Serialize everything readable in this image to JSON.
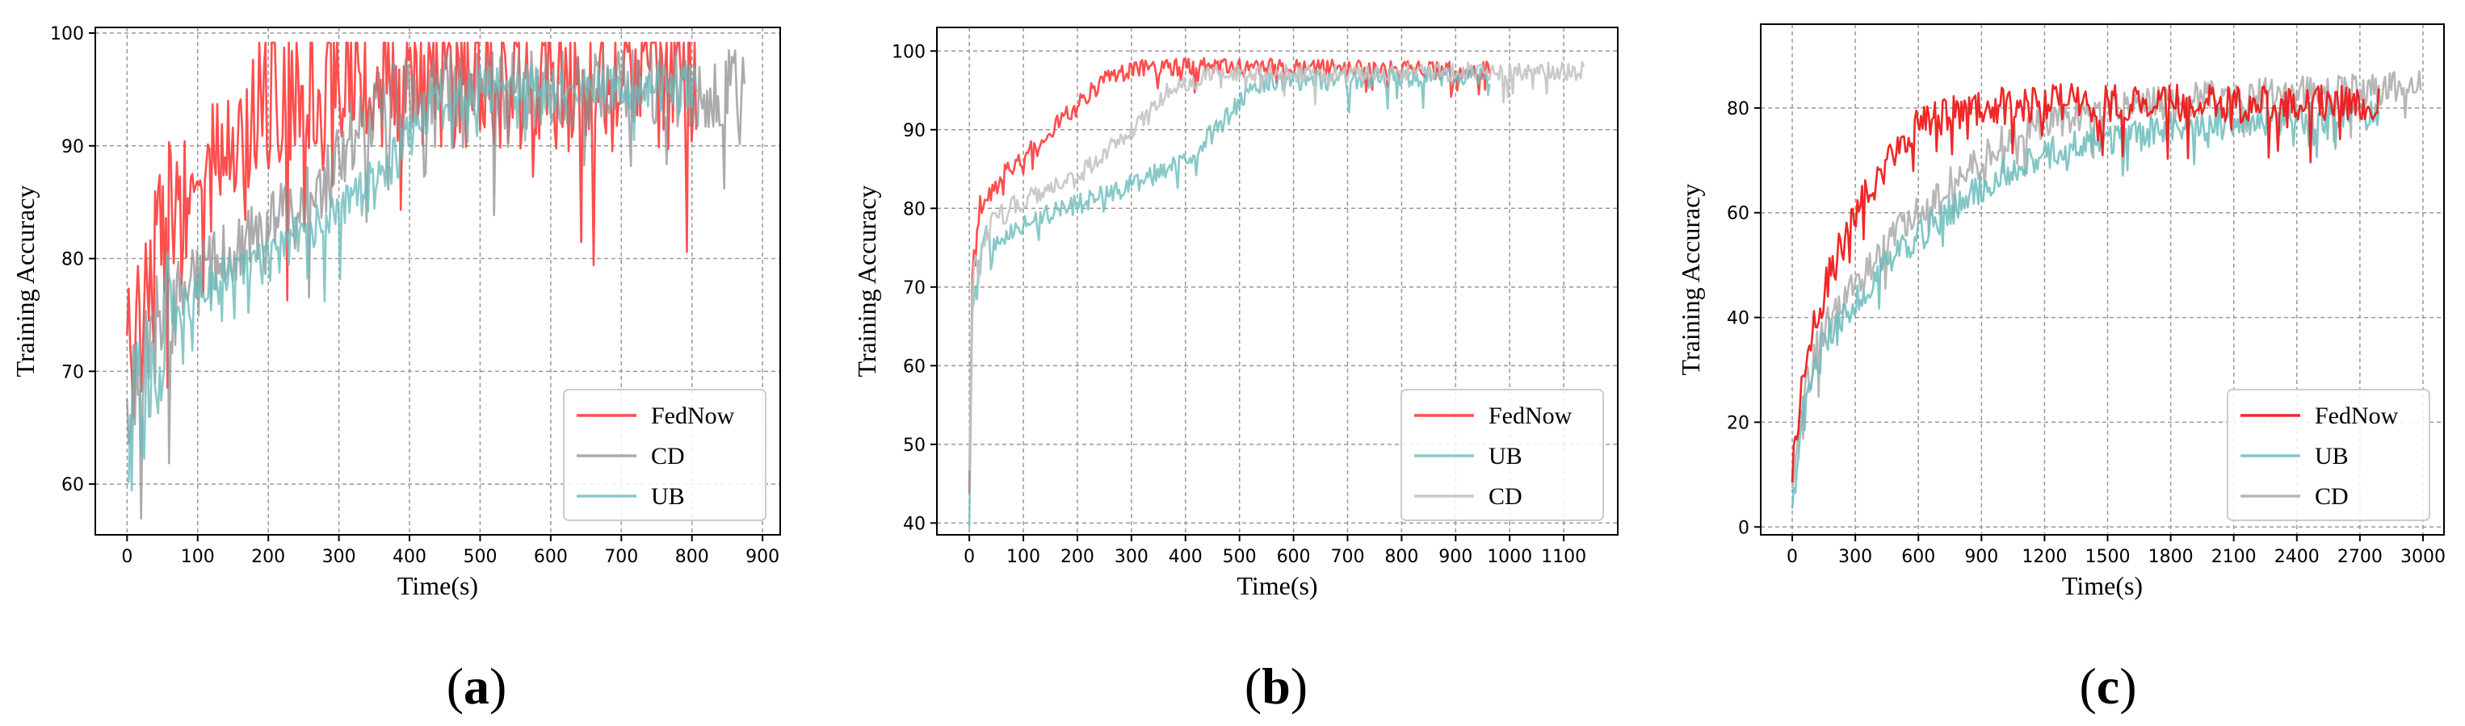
{
  "chart_data": [
    {
      "id": "a",
      "type": "line",
      "panel_label": "a",
      "xlabel": "Time(s)",
      "ylabel": "Training Accuracy",
      "xlim": [
        -45,
        925
      ],
      "ylim": [
        55.5,
        100.5
      ],
      "xticks": [
        0,
        100,
        200,
        300,
        400,
        500,
        600,
        700,
        800,
        900
      ],
      "yticks": [
        60,
        70,
        80,
        90,
        100
      ],
      "grid": true,
      "legend_position": "lower-right",
      "legend_order": [
        "FedNow",
        "CD",
        "UB"
      ],
      "series": [
        {
          "name": "FedNow",
          "color": "#ff3b3b",
          "opacity": 0.9,
          "x_end": 808,
          "noise": 6.5,
          "noise_low": 8,
          "anchors": [
            [
              0,
              71
            ],
            [
              20,
              76
            ],
            [
              50,
              82
            ],
            [
              100,
              86
            ],
            [
              150,
              90
            ],
            [
              200,
              94
            ],
            [
              250,
              96
            ],
            [
              800,
              96
            ]
          ]
        },
        {
          "name": "CD",
          "color": "#8f8f8f",
          "opacity": 0.75,
          "x_end": 875,
          "noise": 3.5,
          "noise_low": 5,
          "anchors": [
            [
              0,
              66
            ],
            [
              20,
              72
            ],
            [
              60,
              76
            ],
            [
              120,
              79
            ],
            [
              200,
              82
            ],
            [
              280,
              87
            ],
            [
              330,
              92
            ],
            [
              400,
              95
            ],
            [
              875,
              95
            ]
          ]
        },
        {
          "name": "UB",
          "color": "#6cbcbc",
          "opacity": 0.8,
          "x_end": 810,
          "noise": 2.2,
          "noise_low": 7,
          "anchors": [
            [
              0,
              58
            ],
            [
              10,
              66
            ],
            [
              50,
              74
            ],
            [
              100,
              77
            ],
            [
              200,
              80
            ],
            [
              300,
              84
            ],
            [
              370,
              88
            ],
            [
              420,
              93
            ],
            [
              500,
              95
            ],
            [
              810,
              95
            ]
          ]
        }
      ]
    },
    {
      "id": "b",
      "type": "line",
      "panel_label": "b",
      "xlabel": "Time(s)",
      "ylabel": "Training Accuracy",
      "xlim": [
        -60,
        1200
      ],
      "ylim": [
        38.5,
        103
      ],
      "xticks": [
        0,
        100,
        200,
        300,
        400,
        500,
        600,
        700,
        800,
        900,
        1000,
        1100
      ],
      "yticks": [
        40,
        50,
        60,
        70,
        80,
        90,
        100
      ],
      "grid": true,
      "legend_position": "lower-right",
      "legend_order": [
        "FedNow",
        "UB",
        "CD"
      ],
      "series": [
        {
          "name": "FedNow",
          "color": "#ff3b3b",
          "opacity": 0.9,
          "x_end": 965,
          "noise": 1.2,
          "noise_low": 1.5,
          "anchors": [
            [
              0,
              48
            ],
            [
              6,
              72
            ],
            [
              20,
              81
            ],
            [
              60,
              84
            ],
            [
              120,
              88
            ],
            [
              200,
              93
            ],
            [
              260,
              97
            ],
            [
              350,
              98
            ],
            [
              965,
              97.5
            ]
          ]
        },
        {
          "name": "UB",
          "color": "#6cbcbc",
          "opacity": 0.8,
          "x_end": 965,
          "noise": 1.3,
          "noise_low": 1.8,
          "anchors": [
            [
              0,
              41
            ],
            [
              6,
              68
            ],
            [
              30,
              76
            ],
            [
              100,
              78
            ],
            [
              200,
              80.5
            ],
            [
              300,
              83
            ],
            [
              400,
              86
            ],
            [
              470,
              91
            ],
            [
              530,
              96
            ],
            [
              965,
              97
            ]
          ]
        },
        {
          "name": "CD",
          "color": "#c4c4c4",
          "opacity": 0.9,
          "x_end": 1140,
          "noise": 1.2,
          "noise_low": 1.5,
          "anchors": [
            [
              0,
              48
            ],
            [
              6,
              72
            ],
            [
              40,
              78
            ],
            [
              100,
              81
            ],
            [
              200,
              84
            ],
            [
              300,
              90
            ],
            [
              370,
              95
            ],
            [
              450,
              97
            ],
            [
              1140,
              97.5
            ]
          ]
        }
      ]
    },
    {
      "id": "c",
      "type": "line",
      "panel_label": "c",
      "xlabel": "Time(s)",
      "ylabel": "Training Accuracy",
      "xlim": [
        -150,
        3100
      ],
      "ylim": [
        -1.5,
        96
      ],
      "xticks": [
        0,
        300,
        600,
        900,
        1200,
        1500,
        1800,
        2100,
        2400,
        2700,
        3000
      ],
      "yticks": [
        0,
        20,
        40,
        60,
        80
      ],
      "grid": true,
      "legend_position": "lower-right",
      "legend_order": [
        "FedNow",
        "UB",
        "CD"
      ],
      "series": [
        {
          "name": "CD",
          "color": "#aaaaaa",
          "opacity": 0.85,
          "x_end": 2990,
          "noise": 3.2,
          "noise_low": 3.5,
          "anchors": [
            [
              0,
              8
            ],
            [
              50,
              25
            ],
            [
              150,
              38
            ],
            [
              300,
              46
            ],
            [
              500,
              56
            ],
            [
              800,
              68
            ],
            [
              1100,
              76
            ],
            [
              1500,
              80
            ],
            [
              2000,
              82
            ],
            [
              2990,
              84
            ]
          ]
        },
        {
          "name": "UB",
          "color": "#6cbcbc",
          "opacity": 0.85,
          "x_end": 2790,
          "noise": 3.2,
          "noise_low": 3.5,
          "anchors": [
            [
              0,
              4
            ],
            [
              50,
              22
            ],
            [
              150,
              35
            ],
            [
              300,
              43
            ],
            [
              500,
              52
            ],
            [
              800,
              62
            ],
            [
              1100,
              70
            ],
            [
              1500,
              74
            ],
            [
              2000,
              77
            ],
            [
              2790,
              79
            ]
          ]
        },
        {
          "name": "FedNow",
          "color": "#ee1111",
          "opacity": 0.9,
          "x_end": 2790,
          "noise": 3.6,
          "noise_low": 4,
          "anchors": [
            [
              0,
              9
            ],
            [
              50,
              30
            ],
            [
              150,
              45
            ],
            [
              300,
              60
            ],
            [
              450,
              70
            ],
            [
              600,
              77
            ],
            [
              900,
              80
            ],
            [
              1200,
              81
            ],
            [
              2000,
              81
            ],
            [
              2790,
              81
            ]
          ]
        }
      ]
    }
  ]
}
